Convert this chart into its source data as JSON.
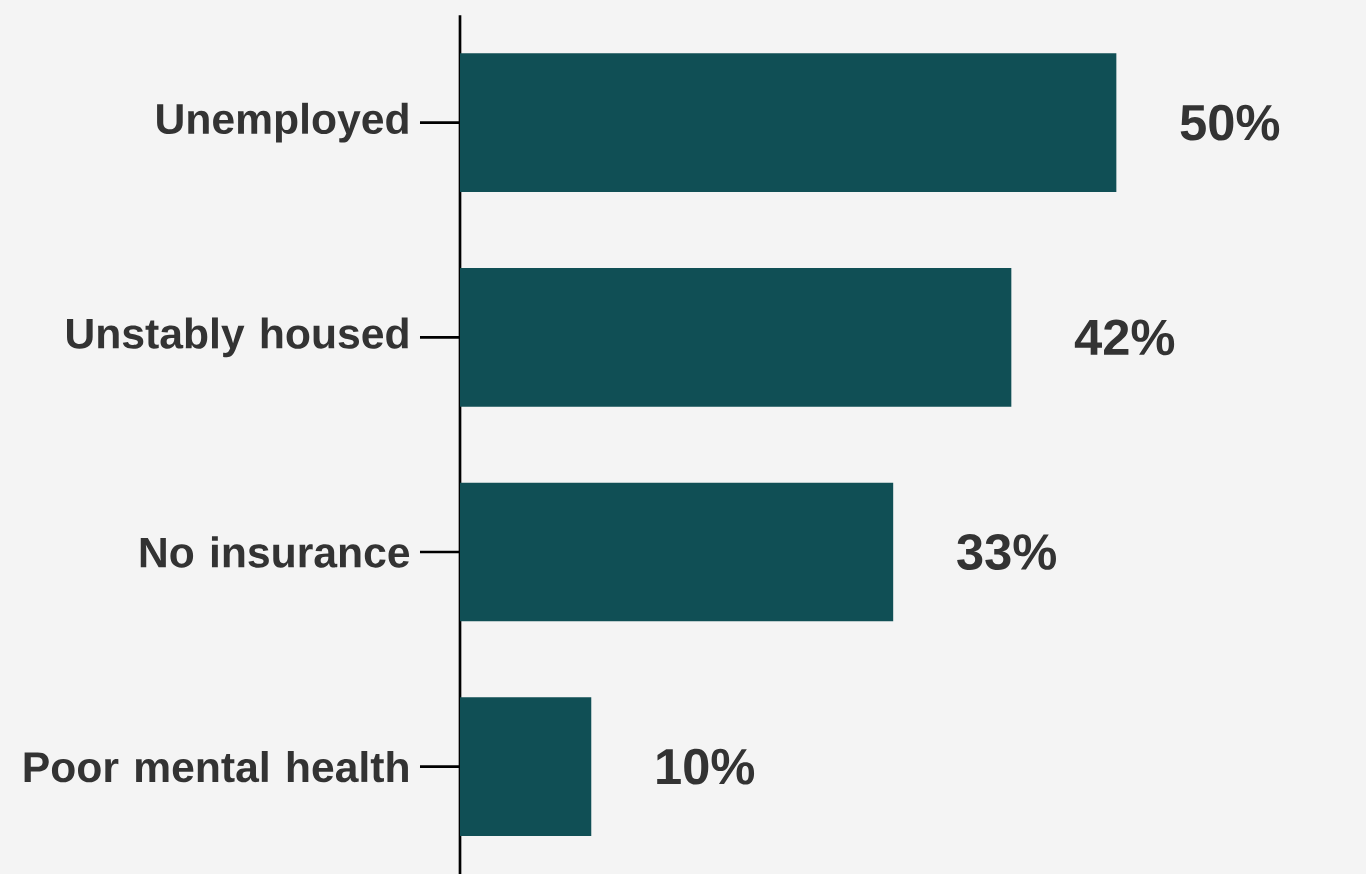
{
  "chart_data": {
    "type": "bar",
    "orientation": "horizontal",
    "categories": [
      "Unemployed",
      "Unstably housed",
      "No insurance",
      "Poor mental health"
    ],
    "values": [
      50,
      42,
      33,
      10
    ],
    "value_labels": [
      "50%",
      "42%",
      "33%",
      "10%"
    ],
    "color": "#104f55"
  }
}
